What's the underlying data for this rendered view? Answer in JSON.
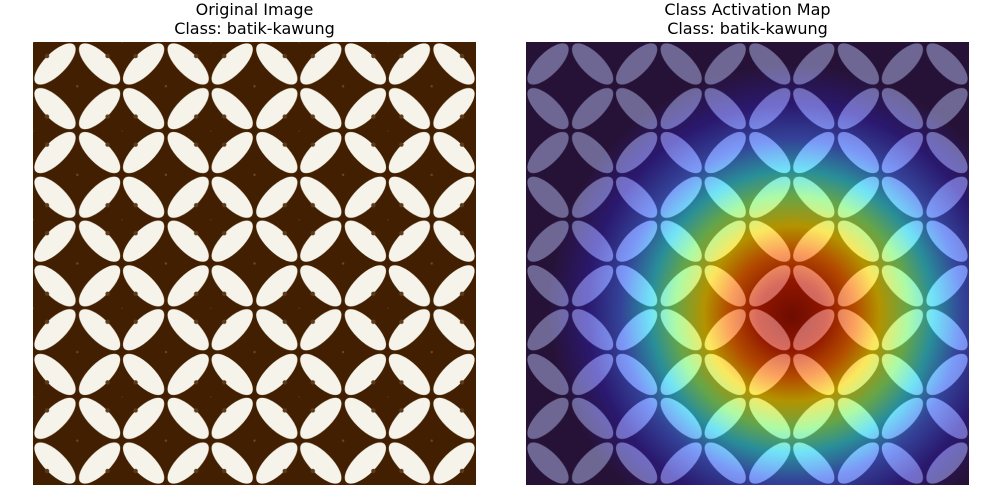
{
  "panels": [
    {
      "title": "Original Image",
      "subtitle": "Class: batik-kawung",
      "image": "batik-kawung-pattern"
    },
    {
      "title": "Class Activation Map",
      "subtitle": "Class: batik-kawung",
      "image": "batik-kawung-pattern-with-heatmap-overlay"
    }
  ],
  "colors": {
    "background": "#421f00",
    "petal": "#f5f3ea",
    "heatmap_overlay_base": "#1a0f70"
  }
}
